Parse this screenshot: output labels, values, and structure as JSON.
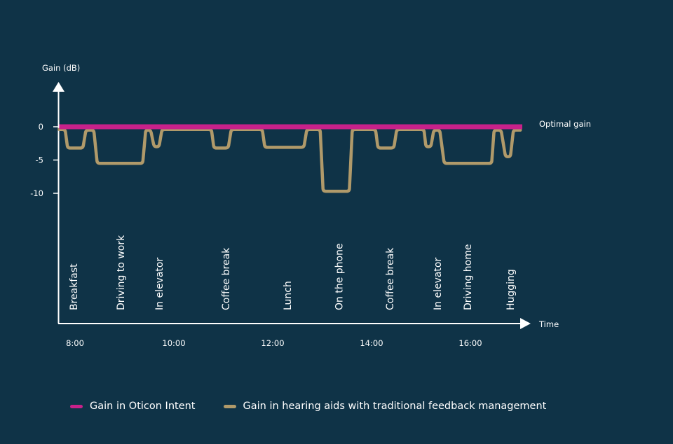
{
  "chart_data": {
    "type": "line",
    "ylabel": "Gain (dB)",
    "xlabel": "Time",
    "yticks": [
      0,
      -5,
      -10
    ],
    "ytick_labels": [
      "0",
      "-5",
      "-10"
    ],
    "xticks": [
      8,
      10,
      12,
      14,
      16
    ],
    "xtick_labels": [
      "8:00",
      "10:00",
      "12:00",
      "14:00",
      "16:00"
    ],
    "xlim": [
      7.67,
      17.2
    ],
    "ylim": [
      -29.5,
      6.7
    ],
    "reference_label": "Optimal gain",
    "activities": [
      {
        "label": "Breakfast",
        "time": 7.97
      },
      {
        "label": "Driving to work",
        "time": 8.92
      },
      {
        "label": "In elevator",
        "time": 9.7
      },
      {
        "label": "Coffee break",
        "time": 11.05
      },
      {
        "label": "Lunch",
        "time": 12.3
      },
      {
        "label": "On the phone",
        "time": 13.34
      },
      {
        "label": "Coffee break",
        "time": 14.37
      },
      {
        "label": "In elevator",
        "time": 15.33
      },
      {
        "label": "Driving home",
        "time": 15.94
      },
      {
        "label": "Hugging",
        "time": 16.81
      }
    ],
    "series": [
      {
        "name": "Gain in Oticon Intent",
        "color": "#c8218a",
        "x": [
          7.68,
          17.05
        ],
        "y": [
          0,
          0
        ]
      },
      {
        "name": "Gain in hearing aids with traditional feedback management",
        "color": "#b09a6a",
        "x": [
          7.68,
          7.8,
          7.85,
          8.16,
          8.22,
          8.38,
          8.45,
          9.37,
          9.43,
          9.53,
          9.6,
          9.7,
          9.76,
          10.76,
          10.81,
          11.1,
          11.16,
          11.79,
          11.84,
          12.63,
          12.69,
          12.96,
          13.02,
          13.55,
          13.61,
          14.08,
          14.13,
          14.45,
          14.51,
          15.06,
          15.1,
          15.2,
          15.26,
          15.38,
          15.47,
          16.43,
          16.48,
          16.62,
          16.71,
          16.81,
          16.87,
          17.01
        ],
        "y": [
          -0.4,
          -0.4,
          -3.2,
          -3.2,
          -0.5,
          -0.5,
          -5.5,
          -5.5,
          -0.5,
          -0.5,
          -3.0,
          -3.0,
          -0.4,
          -0.4,
          -3.2,
          -3.2,
          -0.4,
          -0.4,
          -3.1,
          -3.1,
          -0.4,
          -0.4,
          -9.7,
          -9.7,
          -0.4,
          -0.4,
          -3.2,
          -3.2,
          -0.4,
          -0.4,
          -3.0,
          -3.0,
          -0.5,
          -0.5,
          -5.5,
          -5.5,
          -0.5,
          -0.5,
          -4.5,
          -4.5,
          -0.5,
          -0.5
        ]
      }
    ]
  },
  "legend": {
    "items": [
      {
        "label": "Gain in Oticon Intent",
        "color": "#c8218a"
      },
      {
        "label": "Gain in hearing aids with traditional feedback management",
        "color": "#b09a6a"
      }
    ]
  }
}
